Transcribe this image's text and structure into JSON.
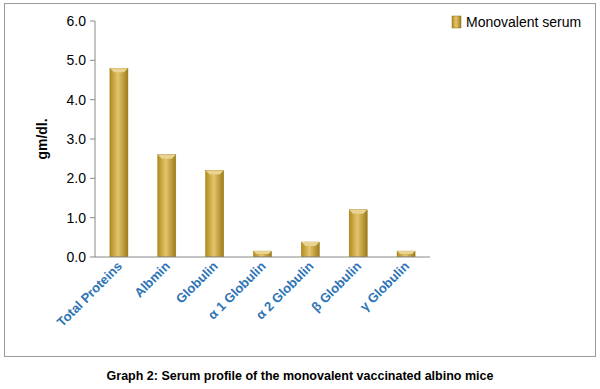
{
  "chart_data": {
    "type": "bar",
    "title": "Graph 2: Serum profile of the monovalent vaccinated albino mice",
    "y_label": "gm/dl.",
    "categories": [
      "Total Proteins",
      "Albmin",
      "Globulin",
      "α 1 Globulin",
      "α 2 Globulin",
      "β Globulin",
      "γ Globulin"
    ],
    "series": [
      {
        "name": "Monovalent serum",
        "color": "#d4a520",
        "values": [
          4.8,
          2.6,
          2.2,
          0.15,
          0.38,
          1.2,
          0.15
        ]
      }
    ],
    "ylim": [
      0,
      6
    ],
    "yticks": [
      {
        "value": 0,
        "label": "0.0"
      },
      {
        "value": 1,
        "label": "1.0"
      },
      {
        "value": 2,
        "label": "2.0"
      },
      {
        "value": 3,
        "label": "3.0"
      },
      {
        "value": 4,
        "label": "4.0"
      },
      {
        "value": 5,
        "label": "5.0"
      },
      {
        "value": 6,
        "label": "6.0"
      }
    ],
    "grid": false,
    "legend": "upper right"
  }
}
